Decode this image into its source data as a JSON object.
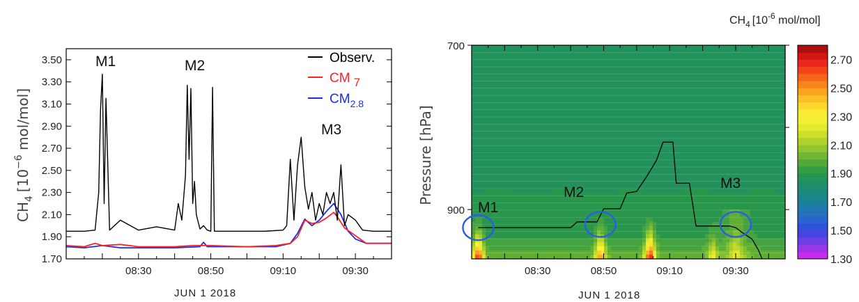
{
  "chart_data": [
    {
      "type": "line",
      "xlabel": "JUN  1 2018",
      "ylabel": "CH4 [10-6 mol/mol]",
      "ylabel_parts": {
        "base": "CH",
        "sub": "4",
        "bracket_open": "[10",
        "sup": "−6",
        "unit": " mol/mol]"
      },
      "xlim": [
        "08:10",
        "09:40"
      ],
      "ylim": [
        1.7,
        3.6
      ],
      "x_ticks": [
        "08:30",
        "08:50",
        "09:10",
        "09:30"
      ],
      "y_ticks": [
        "1.70",
        "1.90",
        "2.10",
        "2.30",
        "2.50",
        "2.70",
        "2.90",
        "3.10",
        "3.30",
        "3.50"
      ],
      "legend": {
        "placement": "top-right",
        "entries": [
          {
            "label": "Observ.",
            "color": "#000000"
          },
          {
            "label": "CM",
            "sub": "7",
            "color": "#ff2020"
          },
          {
            "label": "CM",
            "sub": "2.8",
            "color": "#1a2ee8"
          }
        ]
      },
      "annotations": [
        "M1",
        "M2",
        "M3"
      ],
      "series": [
        {
          "name": "Observ.",
          "color": "#000000",
          "x": [
            "08:10",
            "08:15",
            "08:18",
            "08:19",
            "08:19.5",
            "08:20",
            "08:20.5",
            "08:21",
            "08:22",
            "08:25",
            "08:30",
            "08:35",
            "08:40",
            "08:41",
            "08:42",
            "08:43",
            "08:43.5",
            "08:44",
            "08:44.5",
            "08:45",
            "08:45.5",
            "08:46",
            "08:47",
            "08:48",
            "08:49",
            "08:50",
            "08:50.5",
            "08:51",
            "08:55",
            "09:00",
            "09:05",
            "09:10",
            "09:11",
            "09:12",
            "09:13",
            "09:14",
            "09:15",
            "09:16",
            "09:17",
            "09:18",
            "09:19",
            "09:20",
            "09:21",
            "09:22",
            "09:23",
            "09:24",
            "09:25",
            "09:26",
            "09:27",
            "09:28",
            "09:30",
            "09:32",
            "09:35",
            "09:40"
          ],
          "y": [
            1.95,
            1.95,
            1.96,
            2.3,
            3.05,
            3.37,
            2.2,
            3.15,
            1.96,
            2.05,
            1.96,
            1.99,
            1.96,
            2.2,
            2.05,
            2.45,
            3.27,
            2.6,
            3.24,
            2.2,
            2.4,
            2.1,
            1.97,
            2.0,
            1.96,
            1.95,
            3.25,
            1.95,
            1.95,
            1.95,
            1.95,
            1.96,
            2.0,
            2.6,
            2.05,
            2.55,
            2.8,
            2.35,
            2.15,
            2.3,
            2.05,
            2.2,
            2.1,
            2.3,
            2.2,
            2.3,
            2.05,
            2.55,
            2.0,
            2.1,
            2.05,
            1.96,
            1.95,
            1.95
          ]
        },
        {
          "name": "CM7",
          "color": "#ff2020",
          "x": [
            "08:10",
            "08:15",
            "08:18",
            "08:20",
            "08:25",
            "08:30",
            "08:40",
            "08:45",
            "08:50",
            "09:00",
            "09:08",
            "09:12",
            "09:14",
            "09:16",
            "09:18",
            "09:20",
            "09:22",
            "09:24",
            "09:25",
            "09:27",
            "09:30",
            "09:33",
            "09:40"
          ],
          "y": [
            1.82,
            1.81,
            1.84,
            1.82,
            1.83,
            1.81,
            1.81,
            1.82,
            1.82,
            1.81,
            1.82,
            1.84,
            1.9,
            2.05,
            2.02,
            2.03,
            2.07,
            2.12,
            2.08,
            1.98,
            1.91,
            1.84,
            1.84
          ]
        },
        {
          "name": "CM2.8",
          "color": "#1a2ee8",
          "x": [
            "08:10",
            "08:15",
            "08:20",
            "08:25",
            "08:30",
            "08:40",
            "08:47",
            "08:48",
            "08:49",
            "09:00",
            "09:08",
            "09:12",
            "09:14",
            "09:16",
            "09:18",
            "09:20",
            "09:22",
            "09:24",
            "09:26",
            "09:28",
            "09:30",
            "09:33",
            "09:40"
          ],
          "y": [
            1.81,
            1.8,
            1.82,
            1.8,
            1.8,
            1.8,
            1.81,
            1.85,
            1.81,
            1.81,
            1.81,
            1.84,
            1.93,
            2.06,
            2.0,
            2.05,
            2.13,
            2.2,
            2.1,
            1.95,
            1.88,
            1.84,
            1.84
          ]
        }
      ]
    },
    {
      "type": "heatmap",
      "title": "CH4 [10-6 mol/mol]",
      "title_parts": {
        "base": "CH",
        "sub": "4",
        "bracket_open": "[10",
        "sup": "-6",
        "unit": " mol/mol]"
      },
      "xlabel": "JUN  1 2018",
      "ylabel": "Pressure [hPa]",
      "xlim": [
        "08:10",
        "09:45"
      ],
      "x_ticks": [
        "08:30",
        "08:50",
        "09:10",
        "09:30"
      ],
      "y_ticks": [
        "700",
        "900"
      ],
      "ylim_hPa": [
        700,
        960
      ],
      "colorbar": {
        "range": [
          1.3,
          2.8
        ],
        "step": 0.05,
        "tick_labels": [
          "1.30",
          "1.50",
          "1.70",
          "1.90",
          "2.10",
          "2.30",
          "2.50",
          "2.70"
        ]
      },
      "flight_track": {
        "color": "#000000",
        "x": [
          "08:12",
          "08:25",
          "08:27",
          "08:40",
          "08:42",
          "08:48",
          "08:50",
          "08:55",
          "08:57",
          "09:00",
          "09:03",
          "09:06",
          "09:08",
          "09:11",
          "09:12",
          "09:16",
          "09:18",
          "09:28",
          "09:30",
          "09:32",
          "09:35",
          "09:37",
          "09:38"
        ],
        "p_hPa": [
          922,
          922,
          922,
          922,
          915,
          915,
          899,
          899,
          880,
          878,
          860,
          840,
          818,
          818,
          868,
          868,
          920,
          920,
          922,
          928,
          936,
          950,
          960
        ]
      },
      "annotations": [
        "M1",
        "M2",
        "M3"
      ],
      "near_surface_peaks": [
        {
          "t": "08:12",
          "value": 2.75
        },
        {
          "t": "08:49",
          "value": 2.6
        },
        {
          "t": "09:04",
          "value": 2.8
        },
        {
          "t": "09:23",
          "value": 2.3
        },
        {
          "t": "09:30",
          "value": 2.2
        }
      ]
    }
  ]
}
